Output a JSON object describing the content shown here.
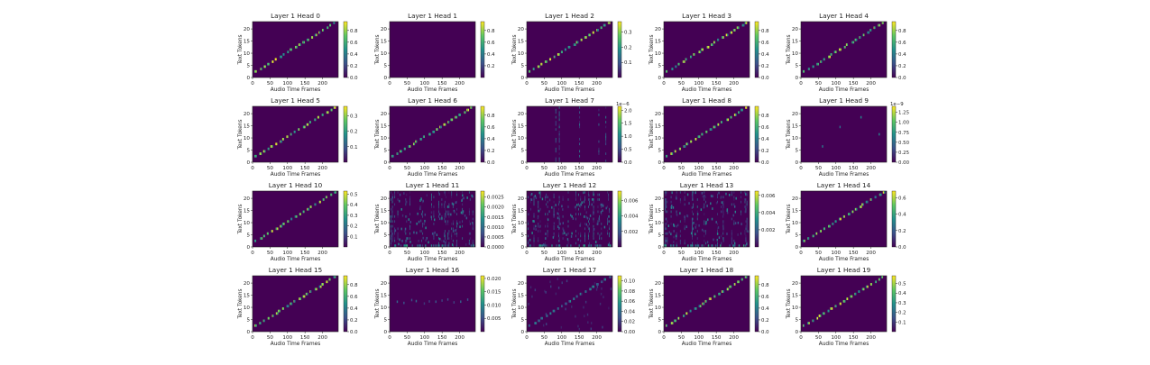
{
  "chart_data": {
    "type": "heatmap",
    "layout": {
      "rows": 4,
      "cols": 5
    },
    "colormap": "viridis",
    "colors": {
      "background": "#440154",
      "low": "#440154",
      "mid": "#21918c",
      "high": "#fde725"
    },
    "xlabel": "Audio Time Frames",
    "ylabel": "Text Tokens",
    "xticks": [
      "0",
      "50",
      "100",
      "150",
      "200"
    ],
    "yticks": [
      "0",
      "5",
      "10",
      "15",
      "20"
    ],
    "xlim": [
      0,
      245
    ],
    "ylim": [
      0,
      23
    ],
    "panels": [
      {
        "title": "Layer 1 Head 0",
        "pattern": "diagonal",
        "cbar_ticks": [
          "0.0",
          "0.2",
          "0.4",
          "0.6",
          "0.8"
        ],
        "cbar_max": 0.95,
        "cbar_exp": ""
      },
      {
        "title": "Layer 1 Head 1",
        "pattern": "empty",
        "cbar_ticks": [
          "0.2",
          "0.4",
          "0.6",
          "0.8"
        ],
        "cbar_max": 0.95,
        "cbar_exp": ""
      },
      {
        "title": "Layer 1 Head 2",
        "pattern": "diagonal",
        "cbar_ticks": [
          "0.1",
          "0.2",
          "0.3"
        ],
        "cbar_max": 0.37,
        "cbar_exp": ""
      },
      {
        "title": "Layer 1 Head 3",
        "pattern": "diagonal",
        "cbar_ticks": [
          "0.0",
          "0.2",
          "0.4",
          "0.6",
          "0.8"
        ],
        "cbar_max": 0.95,
        "cbar_exp": ""
      },
      {
        "title": "Layer 1 Head 4",
        "pattern": "diagonal",
        "cbar_ticks": [
          "0.0",
          "0.2",
          "0.4",
          "0.6",
          "0.8"
        ],
        "cbar_max": 0.95,
        "cbar_exp": ""
      },
      {
        "title": "Layer 1 Head 5",
        "pattern": "diagonal",
        "cbar_ticks": [
          "0.1",
          "0.2",
          "0.3"
        ],
        "cbar_max": 0.36,
        "cbar_exp": ""
      },
      {
        "title": "Layer 1 Head 6",
        "pattern": "diagonal",
        "cbar_ticks": [
          "0.0",
          "0.2",
          "0.4",
          "0.6",
          "0.8"
        ],
        "cbar_max": 0.95,
        "cbar_exp": ""
      },
      {
        "title": "Layer 1 Head 7",
        "pattern": "columns",
        "cbar_ticks": [
          "0.0",
          "0.5",
          "1.0",
          "1.5",
          "2.0"
        ],
        "cbar_max": 2.15,
        "cbar_exp": "1e−6"
      },
      {
        "title": "Layer 1 Head 8",
        "pattern": "diagonal",
        "cbar_ticks": [
          "0.0",
          "0.2",
          "0.4",
          "0.6",
          "0.8"
        ],
        "cbar_max": 0.95,
        "cbar_exp": ""
      },
      {
        "title": "Layer 1 Head 9",
        "pattern": "sparse",
        "cbar_ticks": [
          "0.00",
          "0.25",
          "0.50",
          "0.75",
          "1.00",
          "1.25"
        ],
        "cbar_max": 1.4,
        "cbar_exp": "1e−9"
      },
      {
        "title": "Layer 1 Head 10",
        "pattern": "diagonal",
        "cbar_ticks": [
          "0.1",
          "0.2",
          "0.3",
          "0.4",
          "0.5"
        ],
        "cbar_max": 0.53,
        "cbar_exp": ""
      },
      {
        "title": "Layer 1 Head 11",
        "pattern": "noise",
        "cbar_ticks": [
          "0.0000",
          "0.0005",
          "0.0010",
          "0.0015",
          "0.0020",
          "0.0025"
        ],
        "cbar_max": 0.0028,
        "cbar_exp": ""
      },
      {
        "title": "Layer 1 Head 12",
        "pattern": "noise",
        "cbar_ticks": [
          "0.002",
          "0.004",
          "0.006"
        ],
        "cbar_max": 0.0072,
        "cbar_exp": ""
      },
      {
        "title": "Layer 1 Head 13",
        "pattern": "noise",
        "cbar_ticks": [
          "0.002",
          "0.004",
          "0.006"
        ],
        "cbar_max": 0.0065,
        "cbar_exp": ""
      },
      {
        "title": "Layer 1 Head 14",
        "pattern": "diagonal",
        "cbar_ticks": [
          "0.0",
          "0.2",
          "0.4",
          "0.6"
        ],
        "cbar_max": 0.68,
        "cbar_exp": ""
      },
      {
        "title": "Layer 1 Head 15",
        "pattern": "diagonal",
        "cbar_ticks": [
          "0.0",
          "0.2",
          "0.4",
          "0.6",
          "0.8"
        ],
        "cbar_max": 0.95,
        "cbar_exp": ""
      },
      {
        "title": "Layer 1 Head 16",
        "pattern": "faint",
        "cbar_ticks": [
          "0.005",
          "0.010",
          "0.015",
          "0.020"
        ],
        "cbar_max": 0.021,
        "cbar_exp": ""
      },
      {
        "title": "Layer 1 Head 17",
        "pattern": "faintdiag",
        "cbar_ticks": [
          "0.00",
          "0.02",
          "0.04",
          "0.06",
          "0.08",
          "0.10"
        ],
        "cbar_max": 0.11,
        "cbar_exp": ""
      },
      {
        "title": "Layer 1 Head 18",
        "pattern": "diagonal",
        "cbar_ticks": [
          "0.0",
          "0.2",
          "0.4",
          "0.6",
          "0.8"
        ],
        "cbar_max": 0.95,
        "cbar_exp": ""
      },
      {
        "title": "Layer 1 Head 19",
        "pattern": "diagonal",
        "cbar_ticks": [
          "0.1",
          "0.2",
          "0.3",
          "0.4",
          "0.5"
        ],
        "cbar_max": 0.58,
        "cbar_exp": ""
      }
    ]
  }
}
